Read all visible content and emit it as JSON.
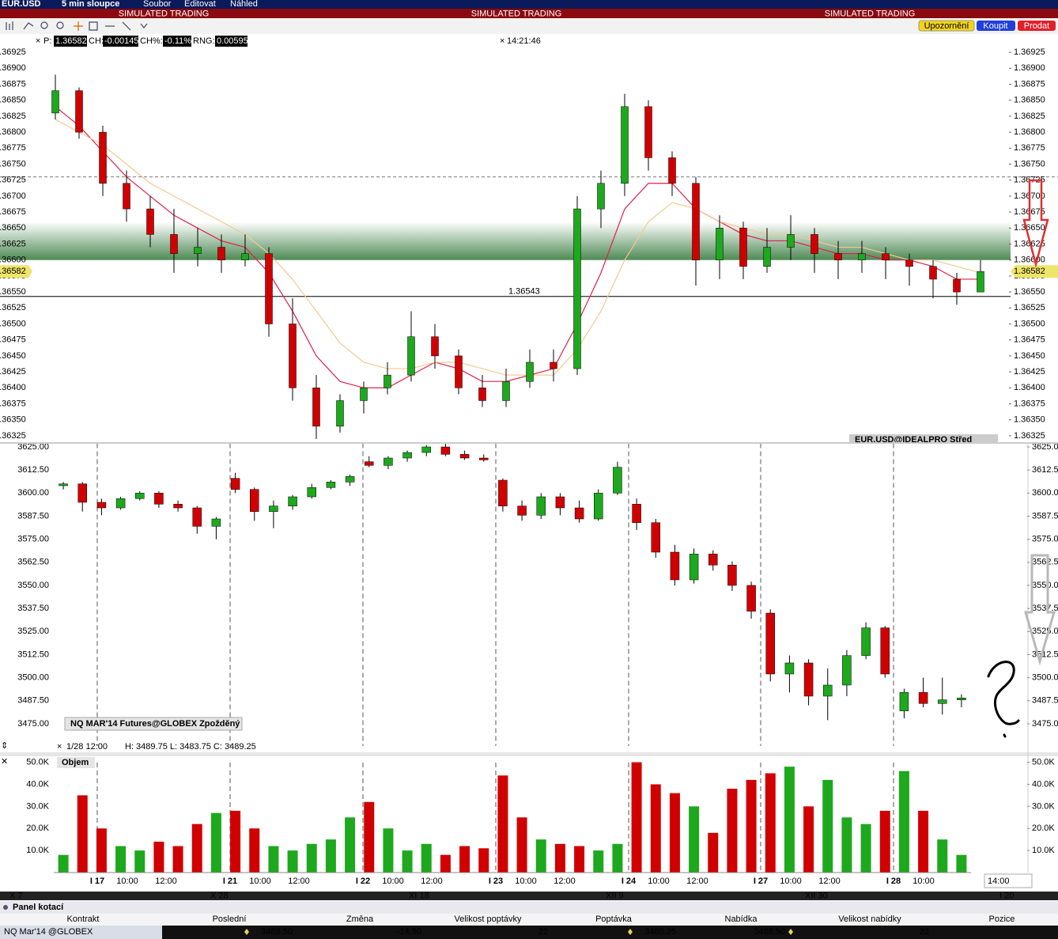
{
  "toolbar": {
    "symbol": "EUR.USD",
    "interval": "5 min sloupce",
    "menu": [
      "Soubor",
      "Editovat",
      "Náhled"
    ],
    "banner": [
      "SIMULATED TRADING",
      "SIMULATED TRADING",
      "SIMULATED TRADING"
    ],
    "buttons": [
      "Upozornění",
      "Koupit",
      "Prodat"
    ]
  },
  "header": {
    "p_label": "P:",
    "p": "1.36582",
    "ch_label": "CH:",
    "ch": "-0.00145",
    "chp_label": "CH%:",
    "chp": "-0.11%",
    "rng_label": "RNG:",
    "rng": "0.00595",
    "time": "14:21:46"
  },
  "chart_data": [
    {
      "type": "candlestick",
      "title": "EUR.USD@IDEALPRO Střed",
      "up_color": "#1ea81e",
      "down_color": "#d00000",
      "ohlc": [
        [
          1.3683,
          1.3689,
          1.3682,
          1.36865
        ],
        [
          1.36865,
          1.3687,
          1.3679,
          1.368
        ],
        [
          1.368,
          1.3681,
          1.367,
          1.3672
        ],
        [
          1.3672,
          1.3674,
          1.3666,
          1.3668
        ],
        [
          1.3668,
          1.367,
          1.3662,
          1.3664
        ],
        [
          1.3664,
          1.3668,
          1.3658,
          1.3661
        ],
        [
          1.3661,
          1.3665,
          1.3659,
          1.3662
        ],
        [
          1.3662,
          1.3664,
          1.3658,
          1.366
        ],
        [
          1.366,
          1.3664,
          1.3659,
          1.3661
        ],
        [
          1.3661,
          1.3662,
          1.3648,
          1.365
        ],
        [
          1.365,
          1.3654,
          1.3638,
          1.364
        ],
        [
          1.364,
          1.3642,
          1.3632,
          1.3634
        ],
        [
          1.3634,
          1.3639,
          1.3633,
          1.3638
        ],
        [
          1.3638,
          1.3641,
          1.3636,
          1.364
        ],
        [
          1.364,
          1.3644,
          1.3639,
          1.3642
        ],
        [
          1.3642,
          1.3652,
          1.3641,
          1.3648
        ],
        [
          1.3648,
          1.365,
          1.3643,
          1.3645
        ],
        [
          1.3645,
          1.3646,
          1.3639,
          1.364
        ],
        [
          1.364,
          1.3642,
          1.3637,
          1.3638
        ],
        [
          1.3638,
          1.3643,
          1.3637,
          1.3641
        ],
        [
          1.3641,
          1.3646,
          1.364,
          1.3644
        ],
        [
          1.3644,
          1.3646,
          1.3641,
          1.3643
        ],
        [
          1.3643,
          1.367,
          1.3642,
          1.3668
        ],
        [
          1.3668,
          1.3674,
          1.3665,
          1.3672
        ],
        [
          1.3672,
          1.3686,
          1.367,
          1.3684
        ],
        [
          1.3684,
          1.3685,
          1.3674,
          1.3676
        ],
        [
          1.3676,
          1.3677,
          1.367,
          1.3672
        ],
        [
          1.3672,
          1.3673,
          1.3656,
          1.366
        ],
        [
          1.366,
          1.3667,
          1.3657,
          1.3665
        ],
        [
          1.3665,
          1.3666,
          1.3657,
          1.3659
        ],
        [
          1.3659,
          1.3665,
          1.3658,
          1.3662
        ],
        [
          1.3662,
          1.3667,
          1.366,
          1.3664
        ],
        [
          1.3664,
          1.3665,
          1.3658,
          1.3661
        ],
        [
          1.3661,
          1.3663,
          1.3657,
          1.366
        ],
        [
          1.366,
          1.3663,
          1.3658,
          1.3661
        ],
        [
          1.3661,
          1.3662,
          1.3657,
          1.366
        ],
        [
          1.366,
          1.3661,
          1.3656,
          1.3659
        ],
        [
          1.3659,
          1.366,
          1.3654,
          1.3657
        ],
        [
          1.3657,
          1.3658,
          1.3653,
          1.3655
        ],
        [
          1.3655,
          1.366,
          1.3655,
          1.36582
        ]
      ],
      "lines": [
        {
          "color": "#e0204a",
          "values": [
            1.3684,
            1.3681,
            1.3677,
            1.3673,
            1.367,
            1.3667,
            1.3665,
            1.3663,
            1.3662,
            1.3658,
            1.3652,
            1.3645,
            1.3641,
            1.364,
            1.364,
            1.3642,
            1.3644,
            1.3643,
            1.3641,
            1.3641,
            1.3642,
            1.3643,
            1.365,
            1.3658,
            1.3668,
            1.3672,
            1.3672,
            1.3668,
            1.3666,
            1.3664,
            1.3663,
            1.3663,
            1.3662,
            1.3661,
            1.3661,
            1.366,
            1.366,
            1.3659,
            1.3657,
            1.3657
          ]
        },
        {
          "color": "#f4c890",
          "values": [
            1.3682,
            1.368,
            1.3678,
            1.3675,
            1.3672,
            1.367,
            1.3668,
            1.3666,
            1.3664,
            1.3661,
            1.3657,
            1.3652,
            1.3647,
            1.3644,
            1.3643,
            1.3643,
            1.3644,
            1.3644,
            1.3643,
            1.3642,
            1.3642,
            1.3642,
            1.3646,
            1.3652,
            1.366,
            1.3666,
            1.3669,
            1.3668,
            1.3666,
            1.3665,
            1.3664,
            1.3664,
            1.3663,
            1.3662,
            1.3662,
            1.3661,
            1.366,
            1.366,
            1.3659,
            1.3658
          ]
        }
      ],
      "ylim": [
        1.3631,
        1.3694
      ],
      "yticks": [
        1.36325,
        {
          "value": 1.3635,
          "label": "1.36350"
        },
        1.36375,
        {
          "value": 1.364,
          "label": "1.36400"
        },
        1.36425,
        {
          "value": 1.3645,
          "label": "1.36450"
        },
        1.36475,
        {
          "value": 1.365,
          "label": "1.36500"
        },
        1.36525,
        {
          "value": 1.3655,
          "label": "1.36550"
        },
        1.36575,
        {
          "value": 1.366,
          "label": "1.36600"
        },
        1.36625,
        {
          "value": 1.3665,
          "label": "1.36650"
        },
        1.36675,
        {
          "value": 1.367,
          "label": "1.36700"
        },
        1.36725,
        {
          "value": 1.3675,
          "label": "1.36750"
        },
        1.36775,
        {
          "value": 1.368,
          "label": "1.36800"
        },
        1.36825,
        {
          "value": 1.3685,
          "label": "1.36850"
        },
        1.36875,
        {
          "value": 1.369,
          "label": "1.36900"
        },
        1.36925
      ],
      "last": 1.36582,
      "level": 1.36543,
      "dashed_level": 1.3673,
      "zone": [
        1.366,
        1.3666
      ]
    },
    {
      "type": "candlestick",
      "title": "NQ MAR'14 Futures@GLOBEX Zpožděný",
      "up_color": "#1ea81e",
      "down_color": "#d00000",
      "info_time": "1/28 12:00",
      "info": "H: 3489.75 L: 3483.75 C: 3489.25",
      "ohlc": [
        [
          3604,
          3606,
          3602,
          3605
        ],
        [
          3605,
          3606,
          3590,
          3595
        ],
        [
          3595,
          3597,
          3588,
          3592
        ],
        [
          3592,
          3598,
          3591,
          3597
        ],
        [
          3597,
          3601,
          3596,
          3600
        ],
        [
          3600,
          3601,
          3592,
          3594
        ],
        [
          3594,
          3596,
          3590,
          3592
        ],
        [
          3592,
          3593,
          3578,
          3582
        ],
        [
          3582,
          3587,
          3575,
          3586
        ],
        [
          3608,
          3611,
          3600,
          3602
        ],
        [
          3602,
          3603,
          3585,
          3590
        ],
        [
          3590,
          3596,
          3581,
          3593
        ],
        [
          3593,
          3599,
          3591,
          3598
        ],
        [
          3598,
          3605,
          3597,
          3603
        ],
        [
          3603,
          3607,
          3602,
          3606
        ],
        [
          3606,
          3610,
          3604,
          3609
        ],
        [
          3617,
          3620,
          3614,
          3615
        ],
        [
          3615,
          3620,
          3613,
          3619
        ],
        [
          3619,
          3623,
          3617,
          3622
        ],
        [
          3622,
          3626,
          3620,
          3625
        ],
        [
          3625,
          3627,
          3620,
          3621
        ],
        [
          3621,
          3623,
          3618,
          3619
        ],
        [
          3619,
          3621,
          3617,
          3618
        ],
        [
          3607,
          3608,
          3590,
          3593
        ],
        [
          3593,
          3596,
          3585,
          3588
        ],
        [
          3588,
          3600,
          3586,
          3598
        ],
        [
          3598,
          3600,
          3588,
          3592
        ],
        [
          3592,
          3596,
          3584,
          3586
        ],
        [
          3586,
          3602,
          3585,
          3600
        ],
        [
          3600,
          3617,
          3599,
          3614
        ],
        [
          3594,
          3597,
          3580,
          3584
        ],
        [
          3584,
          3586,
          3565,
          3568
        ],
        [
          3568,
          3572,
          3550,
          3553
        ],
        [
          3553,
          3570,
          3551,
          3567
        ],
        [
          3567,
          3569,
          3558,
          3561
        ],
        [
          3561,
          3563,
          3547,
          3550
        ],
        [
          3550,
          3552,
          3532,
          3536
        ],
        [
          3535,
          3537,
          3498,
          3502
        ],
        [
          3502,
          3512,
          3492,
          3508
        ],
        [
          3508,
          3510,
          3485,
          3490
        ],
        [
          3490,
          3505,
          3477,
          3496
        ],
        [
          3496,
          3515,
          3490,
          3512
        ],
        [
          3512,
          3530,
          3510,
          3527
        ],
        [
          3527,
          3528,
          3500,
          3502
        ],
        [
          3482,
          3494,
          3478,
          3492
        ],
        [
          3492,
          3500,
          3484,
          3486
        ],
        [
          3486,
          3500,
          3480,
          3488
        ],
        [
          3488,
          3491,
          3484,
          3489
        ]
      ],
      "ylim": [
        3463,
        3629.5
      ],
      "yticks": [
        {
          "value": 3475,
          "label": "3475.00"
        },
        {
          "value": 3487.5,
          "label": "3487.50"
        },
        {
          "value": 3500,
          "label": "3500.00"
        },
        {
          "value": 3512.5,
          "label": "3512.50"
        },
        {
          "value": 3525,
          "label": "3525.00"
        },
        {
          "value": 3537.5,
          "label": "3537.50"
        },
        {
          "value": 3550,
          "label": "3550.00"
        },
        {
          "value": 3562.5,
          "label": "3562.50"
        },
        {
          "value": 3575,
          "label": "3575.00"
        },
        {
          "value": 3587.5,
          "label": "3587.50"
        },
        {
          "value": 3600,
          "label": "3600.00"
        },
        {
          "value": 3612.5,
          "label": "3612.50"
        },
        {
          "value": 3625,
          "label": "3625.00"
        }
      ]
    },
    {
      "type": "bar",
      "title": "Objem",
      "values": [
        8000,
        35000,
        20000,
        12000,
        10000,
        14000,
        12000,
        22000,
        27000,
        28000,
        20000,
        12000,
        10000,
        13000,
        15000,
        25000,
        32000,
        20000,
        10000,
        13000,
        8000,
        12000,
        11000,
        44000,
        25000,
        15000,
        13000,
        12000,
        10000,
        13000,
        50000,
        40000,
        36000,
        30000,
        18000,
        38000,
        42000,
        45000,
        48000,
        30000,
        42000,
        25000,
        22000,
        28000,
        46000,
        28000,
        15000,
        8000
      ],
      "ylim": [
        0,
        52000
      ],
      "yticks": [
        {
          "value": 10000,
          "label": "10.0K"
        },
        {
          "value": 20000,
          "label": "20.0K"
        },
        {
          "value": 30000,
          "label": "30.0K"
        },
        {
          "value": 40000,
          "label": "40.0K"
        },
        {
          "value": 50000,
          "label": "50.0K"
        }
      ],
      "time_labels": [
        "I 17",
        "10:00",
        "12:00",
        "I 21",
        "10:00",
        "12:00",
        "I 22",
        "10:00",
        "12:00",
        "I 23",
        "10:00",
        "12:00",
        "I 24",
        "10:00",
        "12:00",
        "I 27",
        "10:00",
        "12:00",
        "I 28",
        "10:00"
      ],
      "cursor_time": "14:00",
      "overview_labels": [
        "X 7",
        "X 28",
        "XI 18",
        "XII 9",
        "XII 30",
        "I 20"
      ]
    }
  ],
  "panel": {
    "title": "Panel kotací",
    "columns": [
      "Kontrakt",
      "Poslední",
      "Změna",
      "Velikost poptávky",
      "Poptávka",
      "Nabídka",
      "Velikost nabídky",
      "Pozice"
    ],
    "row": [
      "NQ Mar'14 @GLOBEX",
      "3488.50",
      "-14.50",
      "22",
      "3488.25",
      "3488.50",
      "22"
    ]
  }
}
